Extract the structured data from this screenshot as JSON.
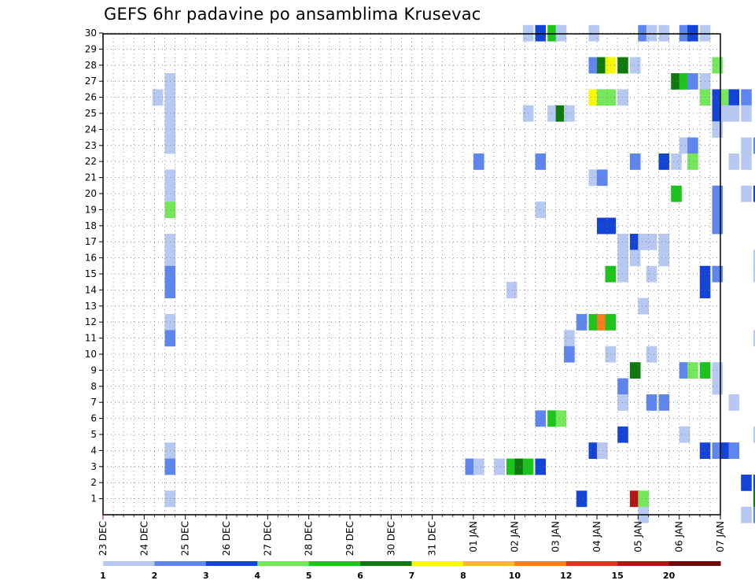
{
  "chart_data": {
    "type": "heatmap",
    "title": "GEFS 6hr padavine po ansamblima Krusevac",
    "y_labels": [
      "1",
      "2",
      "3",
      "4",
      "5",
      "6",
      "7",
      "8",
      "9",
      "10",
      "11",
      "12",
      "13",
      "14",
      "15",
      "16",
      "17",
      "18",
      "19",
      "20",
      "21",
      "22",
      "23",
      "24",
      "25",
      "26",
      "27",
      "28",
      "29",
      "30"
    ],
    "x_labels": [
      "23 DEC",
      "24 DEC",
      "25 DEC",
      "26 DEC",
      "27 DEC",
      "28 DEC",
      "29 DEC",
      "30 DEC",
      "31 DEC",
      "01 JAN",
      "02 JAN",
      "03 JAN",
      "04 JAN",
      "05 JAN",
      "06 JAN",
      "07 JAN"
    ],
    "time_steps_per_day": 4,
    "grid": true,
    "colorbar": {
      "labels": [
        "1",
        "2",
        "3",
        "4",
        "5",
        "6",
        "7",
        "8",
        "10",
        "12",
        "15",
        "20"
      ],
      "colors": [
        "#b7c9f2",
        "#5e86ee",
        "#1444d6",
        "#74e85a",
        "#1cc41c",
        "#0e7a0e",
        "#f8f808",
        "#fbb632",
        "#fb7d1a",
        "#e0321c",
        "#b41414",
        "#6e0a0a"
      ]
    },
    "cells": [
      [
        30,
        33.2,
        1
      ],
      [
        30,
        33.5,
        3
      ],
      [
        30,
        33.8,
        5
      ],
      [
        30,
        34.0,
        1
      ],
      [
        30,
        34.8,
        1
      ],
      [
        30,
        36.0,
        2
      ],
      [
        30,
        36.2,
        1
      ],
      [
        30,
        36.5,
        1
      ],
      [
        30,
        37.0,
        2
      ],
      [
        30,
        37.2,
        3
      ],
      [
        30,
        37.5,
        1
      ],
      [
        28,
        34.8,
        2
      ],
      [
        28,
        35.0,
        6
      ],
      [
        28,
        35.2,
        7
      ],
      [
        28,
        35.5,
        6
      ],
      [
        28,
        35.8,
        1
      ],
      [
        28,
        37.8,
        4
      ],
      [
        27,
        24.5,
        1
      ],
      [
        27,
        36.8,
        6
      ],
      [
        27,
        37.0,
        5
      ],
      [
        27,
        37.2,
        2
      ],
      [
        27,
        37.5,
        1
      ],
      [
        26,
        24.2,
        1
      ],
      [
        26,
        24.5,
        1
      ],
      [
        26,
        34.8,
        7
      ],
      [
        26,
        35.0,
        4
      ],
      [
        26,
        35.2,
        4
      ],
      [
        26,
        35.5,
        1
      ],
      [
        26,
        37.5,
        4
      ],
      [
        26,
        37.8,
        3
      ],
      [
        26,
        38.0,
        4
      ],
      [
        26,
        38.2,
        3
      ],
      [
        26,
        38.5,
        2
      ],
      [
        25,
        24.5,
        1
      ],
      [
        25,
        33.2,
        1
      ],
      [
        25,
        33.8,
        1
      ],
      [
        25,
        34.0,
        6
      ],
      [
        25,
        34.2,
        1
      ],
      [
        25,
        37.8,
        3
      ],
      [
        25,
        38.0,
        1
      ],
      [
        25,
        38.2,
        1
      ],
      [
        25,
        38.5,
        1
      ],
      [
        24,
        24.5,
        1
      ],
      [
        24,
        37.8,
        1
      ],
      [
        23,
        24.5,
        1
      ],
      [
        23,
        37.0,
        1
      ],
      [
        23,
        37.2,
        2
      ],
      [
        23,
        38.5,
        1
      ],
      [
        23,
        38.8,
        2
      ],
      [
        23,
        39.0,
        3
      ],
      [
        23,
        39.2,
        1
      ],
      [
        23,
        39.5,
        1
      ],
      [
        22,
        32.0,
        2
      ],
      [
        22,
        33.5,
        2
      ],
      [
        22,
        35.8,
        2
      ],
      [
        22,
        36.5,
        3
      ],
      [
        22,
        36.8,
        1
      ],
      [
        22,
        37.2,
        4
      ],
      [
        22,
        38.2,
        1
      ],
      [
        22,
        38.5,
        1
      ],
      [
        21,
        24.5,
        1
      ],
      [
        21,
        34.8,
        1
      ],
      [
        21,
        35.0,
        2
      ],
      [
        20,
        24.5,
        1
      ],
      [
        20,
        36.8,
        5
      ],
      [
        20,
        37.8,
        2
      ],
      [
        20,
        38.5,
        1
      ],
      [
        20,
        38.8,
        3
      ],
      [
        20,
        39.0,
        1
      ],
      [
        19,
        24.5,
        4
      ],
      [
        19,
        33.5,
        1
      ],
      [
        19,
        37.8,
        2
      ],
      [
        19,
        39.8,
        8
      ],
      [
        19,
        40.0,
        1
      ],
      [
        18,
        35.0,
        3
      ],
      [
        18,
        35.2,
        3
      ],
      [
        18,
        37.8,
        2
      ],
      [
        17,
        24.5,
        1
      ],
      [
        17,
        35.5,
        1
      ],
      [
        17,
        35.8,
        3
      ],
      [
        17,
        36.0,
        1
      ],
      [
        17,
        36.2,
        1
      ],
      [
        17,
        36.5,
        1
      ],
      [
        17,
        40.0,
        1
      ],
      [
        16,
        24.5,
        1
      ],
      [
        16,
        35.5,
        1
      ],
      [
        16,
        35.8,
        1
      ],
      [
        16,
        36.5,
        1
      ],
      [
        16,
        38.8,
        1
      ],
      [
        16,
        39.0,
        2
      ],
      [
        16,
        39.2,
        6
      ],
      [
        16,
        39.5,
        3
      ],
      [
        15,
        24.5,
        2
      ],
      [
        15,
        35.2,
        5
      ],
      [
        15,
        35.5,
        1
      ],
      [
        15,
        36.2,
        1
      ],
      [
        15,
        37.5,
        3
      ],
      [
        15,
        37.8,
        2
      ],
      [
        15,
        38.8,
        1
      ],
      [
        15,
        39.2,
        6
      ],
      [
        15,
        39.5,
        3
      ],
      [
        14,
        24.5,
        2
      ],
      [
        14,
        32.8,
        1
      ],
      [
        14,
        37.5,
        3
      ],
      [
        13,
        36.0,
        1
      ],
      [
        12,
        24.5,
        1
      ],
      [
        12,
        34.5,
        2
      ],
      [
        12,
        34.8,
        5
      ],
      [
        12,
        35.0,
        9
      ],
      [
        12,
        35.2,
        5
      ],
      [
        11,
        24.5,
        2
      ],
      [
        11,
        34.2,
        1
      ],
      [
        11,
        38.8,
        1
      ],
      [
        10,
        34.2,
        2
      ],
      [
        10,
        35.2,
        1
      ],
      [
        10,
        36.2,
        1
      ],
      [
        9,
        35.8,
        6
      ],
      [
        9,
        37.0,
        2
      ],
      [
        9,
        37.2,
        4
      ],
      [
        9,
        37.5,
        5
      ],
      [
        9,
        37.8,
        1
      ],
      [
        8,
        35.5,
        2
      ],
      [
        8,
        37.8,
        1
      ],
      [
        7,
        35.5,
        1
      ],
      [
        7,
        36.2,
        2
      ],
      [
        7,
        36.5,
        2
      ],
      [
        7,
        38.2,
        1
      ],
      [
        6,
        33.5,
        2
      ],
      [
        6,
        33.8,
        5
      ],
      [
        6,
        34.0,
        4
      ],
      [
        5,
        35.5,
        3
      ],
      [
        5,
        37.0,
        1
      ],
      [
        5,
        38.8,
        1
      ],
      [
        5,
        39.0,
        2
      ],
      [
        5,
        39.2,
        2
      ],
      [
        4,
        24.5,
        1
      ],
      [
        4,
        34.8,
        3
      ],
      [
        4,
        35.0,
        1
      ],
      [
        4,
        37.5,
        3
      ],
      [
        4,
        37.8,
        2
      ],
      [
        4,
        38.0,
        3
      ],
      [
        4,
        38.2,
        2
      ],
      [
        3,
        24.5,
        2
      ],
      [
        3,
        31.8,
        2
      ],
      [
        3,
        32.0,
        1
      ],
      [
        3,
        32.5,
        1
      ],
      [
        3,
        32.8,
        5
      ],
      [
        3,
        33.0,
        6
      ],
      [
        3,
        33.2,
        5
      ],
      [
        3,
        33.5,
        3
      ],
      [
        2,
        38.5,
        3
      ],
      [
        2,
        38.8,
        3
      ],
      [
        2,
        39.0,
        3
      ],
      [
        2,
        39.2,
        1
      ],
      [
        2,
        39.5,
        1
      ],
      [
        2,
        40.0,
        5
      ],
      [
        1,
        24.5,
        1
      ],
      [
        1,
        34.5,
        3
      ],
      [
        1,
        35.8,
        11
      ],
      [
        1,
        36.0,
        4
      ],
      [
        1,
        38.8,
        6
      ],
      [
        1,
        39.0,
        3
      ],
      [
        1,
        39.2,
        3
      ],
      [
        1,
        39.5,
        3
      ],
      [
        1,
        40.0,
        1
      ],
      [
        0,
        36.0,
        1
      ],
      [
        0,
        38.5,
        1
      ],
      [
        0,
        38.8,
        2
      ]
    ]
  }
}
